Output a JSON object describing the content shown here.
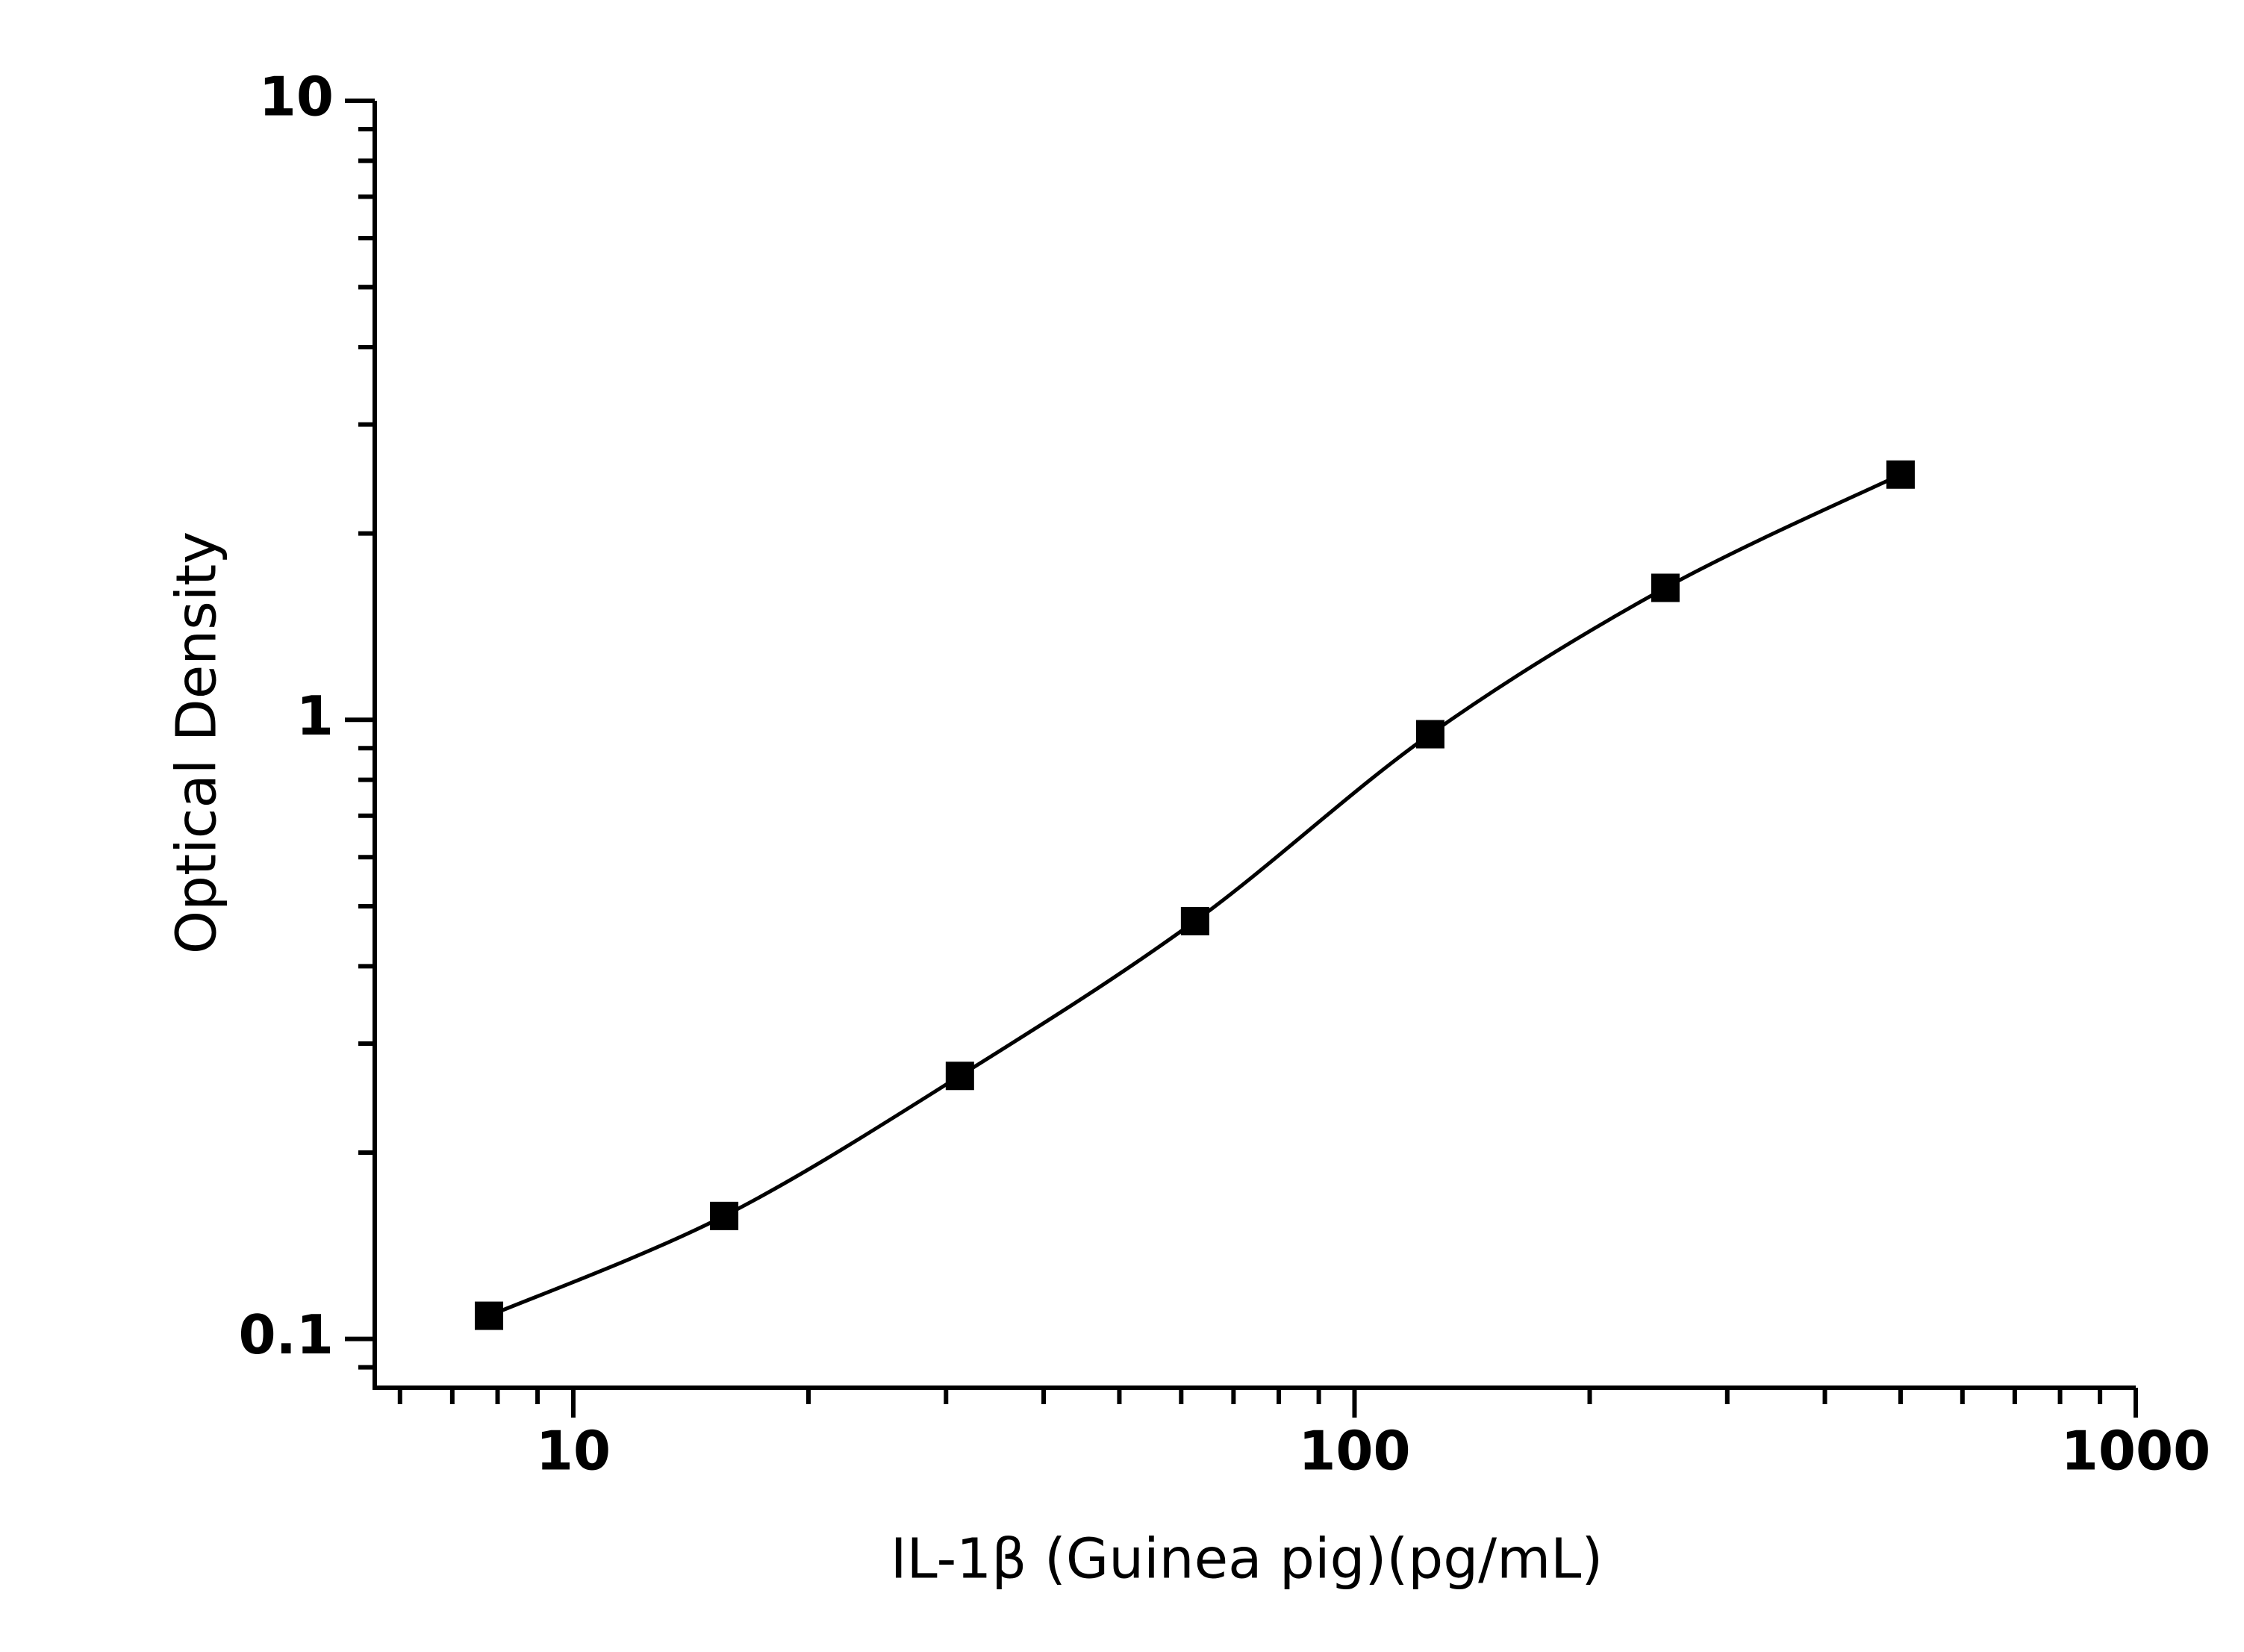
{
  "chart_data": {
    "type": "scatter",
    "x_label": "IL-1β (Guinea pig)(pg/mL)",
    "y_label": "Optical Density",
    "x_log": true,
    "y_log": true,
    "minor_ticks": true,
    "smooth_curve": true,
    "xlim": [
      5.57,
      1000
    ],
    "ylim": [
      0.0834,
      10
    ],
    "xticks": [
      10,
      100,
      1000
    ],
    "yticks": [
      0.1,
      1,
      10
    ],
    "series": [
      {
        "color": "#000000",
        "x": [
          7.8,
          15.6,
          31.25,
          62.5,
          125,
          250,
          500
        ],
        "values": [
          0.109,
          0.158,
          0.266,
          0.473,
          0.948,
          1.634,
          2.49
        ]
      }
    ]
  }
}
